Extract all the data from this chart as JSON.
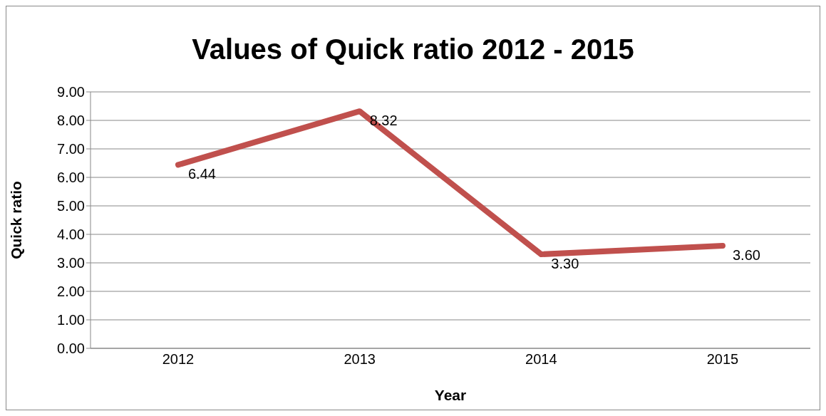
{
  "chart_data": {
    "type": "line",
    "title": "Values of Quick ratio 2012 - 2015",
    "xlabel": "Year",
    "ylabel": "Quick ratio",
    "categories": [
      "2012",
      "2013",
      "2014",
      "2015"
    ],
    "series": [
      {
        "color": "#c0504d",
        "values": [
          6.44,
          8.32,
          3.3,
          3.6
        ],
        "value_labels": [
          "6.44",
          "8.32",
          "3.30",
          "3.60"
        ]
      }
    ],
    "ylim": [
      0,
      9
    ],
    "yticks": [
      {
        "value": 0,
        "label": "0.00"
      },
      {
        "value": 1,
        "label": "1.00"
      },
      {
        "value": 2,
        "label": "2.00"
      },
      {
        "value": 3,
        "label": "3.00"
      },
      {
        "value": 4,
        "label": "4.00"
      },
      {
        "value": 5,
        "label": "5.00"
      },
      {
        "value": 6,
        "label": "6.00"
      },
      {
        "value": 7,
        "label": "7.00"
      },
      {
        "value": 8,
        "label": "8.00"
      },
      {
        "value": 9,
        "label": "9.00"
      }
    ],
    "grid": "y",
    "legend": false,
    "marker": "none",
    "line_style": "solid"
  }
}
